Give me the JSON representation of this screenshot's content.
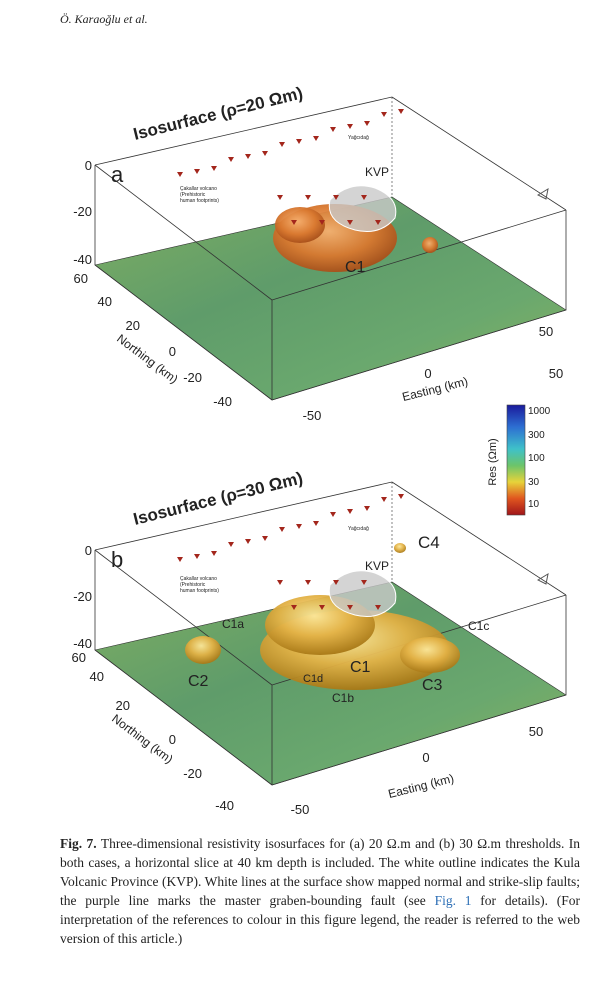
{
  "header": {
    "author": "Ö. Karaoğlu et al."
  },
  "panels": [
    {
      "title": "Isosurface (ρ=20 Ωm)",
      "label": "a",
      "depth_ticks": [
        "0",
        "-20",
        "-40"
      ],
      "northing_ticks": [
        "60",
        "40",
        "20",
        "0",
        "-20",
        "-40"
      ],
      "northing_label": "Northing (km)",
      "easting_ticks": [
        "-50",
        "0",
        "50",
        "50"
      ],
      "easting_label": "Easting (km)",
      "annotations": [
        "KVP",
        "C1",
        "Çakallar volcano",
        "(Prehistoric",
        "human footprints)",
        "Yağcıdağ"
      ]
    },
    {
      "title": "Isosurface (ρ=30 Ωm)",
      "label": "b",
      "depth_ticks": [
        "0",
        "-20",
        "-40"
      ],
      "northing_ticks": [
        "60",
        "40",
        "20",
        "0",
        "-20",
        "-40"
      ],
      "northing_label": "Northing (km)",
      "easting_ticks": [
        "-50",
        "0",
        "50"
      ],
      "easting_label": "Easting (km)",
      "annotations": [
        "KVP",
        "C4",
        "C1a",
        "C2",
        "C1d",
        "C1",
        "C1b",
        "C3",
        "C1c",
        "Çakallar volcano",
        "(Prehistoric",
        "human footprints)",
        "Yağcıdağ"
      ]
    }
  ],
  "colorbar": {
    "label": "Res (Ωm)",
    "ticks": [
      "1000",
      "300",
      "100",
      "30",
      "10"
    ]
  },
  "caption": {
    "label": "Fig. 7.",
    "text_before": "Three-dimensional resistivity isosurfaces for (a) 20 Ω.m and (b) 30 Ω.m thresholds. In both cases, a horizontal slice at 40 km depth is included. The white outline indicates the Kula Volcanic Province (KVP). White lines at the surface show mapped normal and strike-slip faults; the purple line marks the master graben-bounding fault (see ",
    "link": "Fig. 1",
    "text_after": " for details). (For interpretation of the references to colour in this figure legend, the reader is referred to the web version of this article.)"
  }
}
